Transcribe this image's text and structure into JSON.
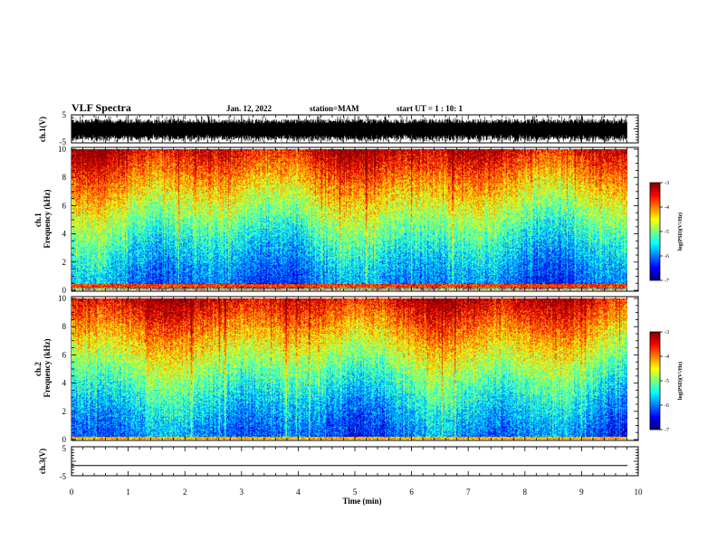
{
  "header": {
    "title": "VLF Spectra",
    "date": "Jan. 12, 2022",
    "station": "station=MAM",
    "start": "start UT = 1 : 10: 1"
  },
  "colorbar": {
    "label": "log(PSD)(V²/Hz)",
    "ticks": [
      "-3",
      "-4",
      "-5",
      "-6",
      "-7"
    ],
    "range": [
      -7,
      -3
    ]
  },
  "chart_data": [
    {
      "type": "line",
      "name": "ch.1 waveform",
      "ylabel": "ch.1(V)",
      "ylim": [
        -5,
        5
      ],
      "yticks": [
        "5",
        "-5"
      ],
      "x_range_min": [
        0,
        10
      ],
      "description_note": ""
    },
    {
      "type": "heatmap",
      "ylabel": "ch.1\nFrequency (kHz)",
      "ylabel_lines": [
        "ch.1",
        "Frequency (kHz)"
      ],
      "ylim": [
        0,
        10
      ],
      "yticks": [
        "0",
        "2",
        "4",
        "6",
        "8",
        "10"
      ],
      "x_range_min": [
        0,
        9.85
      ],
      "colorscale": "jet",
      "zlim": [
        -7,
        -3
      ]
    },
    {
      "type": "heatmap",
      "ylabel_lines": [
        "ch.2",
        "Frequency (kHz)"
      ],
      "ylim": [
        0,
        10
      ],
      "yticks": [
        "0",
        "2",
        "4",
        "6",
        "8",
        "10"
      ],
      "x_range_min": [
        0,
        9.85
      ],
      "colorscale": "jet",
      "zlim": [
        -7,
        -3
      ]
    },
    {
      "type": "line",
      "ylabel": "ch.3(V)",
      "ylim": [
        -5,
        5
      ],
      "yticks": [
        "5",
        "-5"
      ],
      "value": -1.5,
      "x_range_min": [
        0,
        9.85
      ]
    }
  ],
  "xaxis": {
    "label": "Time (min)",
    "ticks": [
      "0",
      "1",
      "2",
      "3",
      "4",
      "5",
      "6",
      "7",
      "8",
      "9",
      "10"
    ],
    "range": [
      0,
      10
    ]
  }
}
